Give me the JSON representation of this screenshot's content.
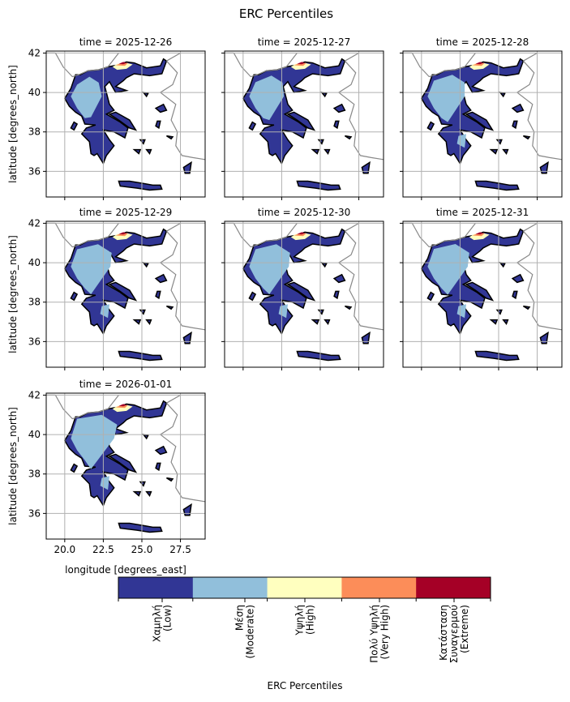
{
  "figure": {
    "title": "ERC Percentiles",
    "ylabel": "latitude [degrees_north]",
    "xlabel": "longitude [degrees_east]"
  },
  "chart_data": {
    "type": "heatmap",
    "title": "ERC Percentiles",
    "panel_titles": [
      "time = 2025-12-26",
      "time = 2025-12-27",
      "time = 2025-12-28",
      "time = 2025-12-29",
      "time = 2025-12-30",
      "time = 2025-12-31",
      "time = 2026-01-01"
    ],
    "xlabel": "longitude [degrees_east]",
    "ylabel": "latitude [degrees_north]",
    "xticks": [
      "20.0",
      "22.5",
      "25.0",
      "27.5"
    ],
    "yticks": [
      "36",
      "38",
      "40",
      "42"
    ],
    "xlim": [
      18.8,
      29.1
    ],
    "ylim": [
      34.7,
      42.1
    ],
    "grid": true,
    "colorbar": {
      "label": "ERC Percentiles",
      "categories": [
        {
          "label": "Χαμηλή\n(Low)",
          "color": "#313695"
        },
        {
          "label": "Μέση\n(Moderate)",
          "color": "#91bfdb"
        },
        {
          "label": "Υψηλή\n(High)",
          "color": "#ffffbf"
        },
        {
          "label": "Πολύ Υψηλή\n(Very High)",
          "color": "#fc8d59"
        },
        {
          "label": "Κατάσταση\nΣυναγερμού\n(Extreme)",
          "color": "#a50026"
        }
      ]
    }
  }
}
